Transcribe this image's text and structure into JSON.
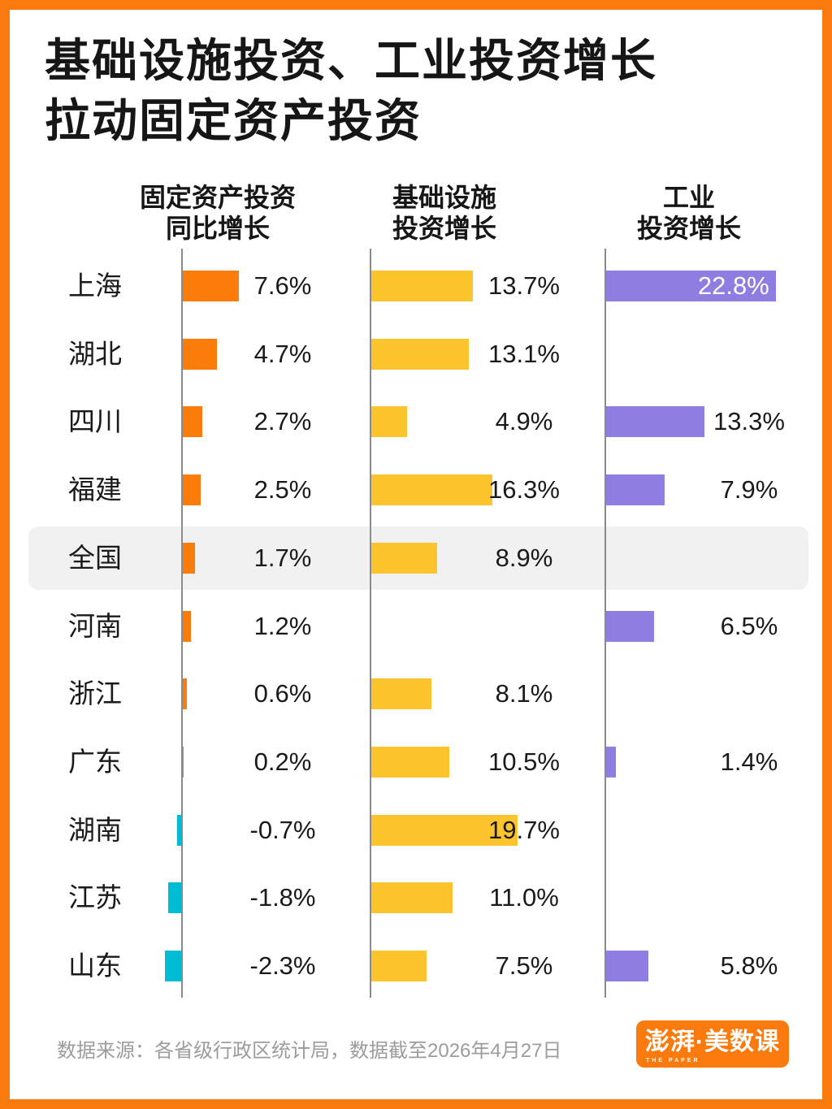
{
  "title": {
    "line1": "基础设施投资、工业投资增长",
    "line2": "拉动固定资产投资"
  },
  "columns": [
    {
      "id": "fixed-asset",
      "header_line1": "固定资产投资",
      "header_line2": "同比增长"
    },
    {
      "id": "infrastructure",
      "header_line1": "基础设施",
      "header_line2": "投资增长"
    },
    {
      "id": "industry",
      "header_line1": "工业",
      "header_line2": "投资增长"
    }
  ],
  "chart_data": {
    "type": "bar",
    "orientation": "horizontal",
    "unit": "%",
    "title": "基础设施投资、工业投资增长拉动固定资产投资",
    "categories": [
      "上海",
      "湖北",
      "四川",
      "福建",
      "全国",
      "河南",
      "浙江",
      "广东",
      "湖南",
      "江苏",
      "山东"
    ],
    "highlighted_category": "全国",
    "series": [
      {
        "name": "固定资产投资同比增长",
        "cells": [
          {
            "v": 7.6,
            "label": "7.6%"
          },
          {
            "v": 4.7,
            "label": "4.7%"
          },
          {
            "v": 2.7,
            "label": "2.7%"
          },
          {
            "v": 2.5,
            "label": "2.5%"
          },
          {
            "v": 1.7,
            "label": "1.7%"
          },
          {
            "v": 1.2,
            "label": "1.2%"
          },
          {
            "v": 0.6,
            "label": "0.6%"
          },
          {
            "v": 0.2,
            "label": "0.2%"
          },
          {
            "v": -0.7,
            "label": "-0.7%"
          },
          {
            "v": -1.8,
            "label": "-1.8%"
          },
          {
            "v": -2.3,
            "label": "-2.3%"
          }
        ]
      },
      {
        "name": "基础设施投资增长",
        "cells": [
          {
            "v": 13.7,
            "label": "13.7%"
          },
          {
            "v": 13.1,
            "label": "13.1%"
          },
          {
            "v": 4.9,
            "label": "4.9%"
          },
          {
            "v": 16.3,
            "label": "16.3%"
          },
          {
            "v": 8.9,
            "label": "8.9%"
          },
          null,
          {
            "v": 8.1,
            "label": "8.1%"
          },
          {
            "v": 10.5,
            "label": "10.5%"
          },
          {
            "v": 19.7,
            "label": "19.7%"
          },
          {
            "v": 11.0,
            "label": "11.0%"
          },
          {
            "v": 7.5,
            "label": "7.5%"
          }
        ]
      },
      {
        "name": "工业投资增长",
        "cells": [
          {
            "v": 22.8,
            "label": "22.8%",
            "inside": true
          },
          null,
          {
            "v": 13.3,
            "label": "13.3%"
          },
          {
            "v": 7.9,
            "label": "7.9%"
          },
          null,
          {
            "v": 6.5,
            "label": "6.5%"
          },
          null,
          {
            "v": 1.4,
            "label": "1.4%"
          },
          null,
          null,
          {
            "v": 5.8,
            "label": "5.8%"
          }
        ]
      }
    ],
    "colors": {
      "positive": "#FB7C0A",
      "negative": "#00BCD5",
      "infrastructure": "#FDC42E",
      "industry": "#8F7DE2",
      "axis": "#8A8A8A",
      "highlight_band": "#F1F1F2",
      "frame": "#FA7A0E"
    },
    "legend_position": "none",
    "grid": "vertical-axes-only"
  },
  "footer": {
    "source": "数据来源：各省级行政区统计局，数据截至2026年4月27日",
    "logo_text": "澎湃·美数课",
    "logo_subtext": "THE PAPER"
  }
}
